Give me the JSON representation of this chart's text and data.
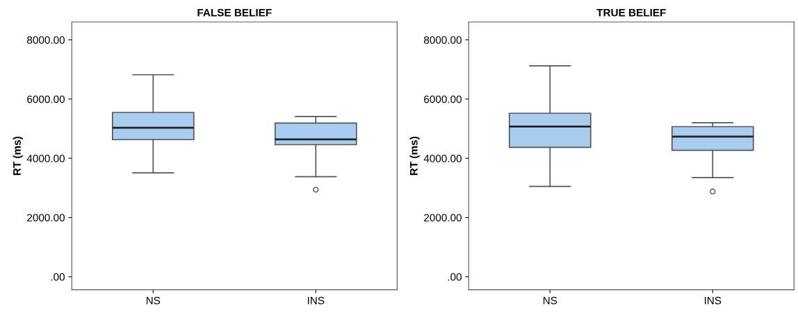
{
  "chart_data": [
    {
      "type": "box",
      "title": "FALSE BELIEF",
      "ylabel": "RT (ms)",
      "categories": [
        "NS",
        "INS"
      ],
      "color": "#a9cdee",
      "boxes": [
        {
          "low": 3510,
          "q1": 4630,
          "median": 5030,
          "q3": 5550,
          "high": 6820
        },
        {
          "low": 3380,
          "q1": 4460,
          "median": 4640,
          "q3": 5190,
          "high": 5410,
          "outliers": [
            2940
          ]
        }
      ],
      "ylim": [
        -440,
        8600
      ],
      "yticks": [
        {
          "value": 0,
          "label": ".00"
        },
        {
          "value": 2000,
          "label": "2000.00"
        },
        {
          "value": 4000,
          "label": "4000.00"
        },
        {
          "value": 6000,
          "label": "6000.00"
        },
        {
          "value": 8000,
          "label": "8000.00"
        }
      ],
      "grid": false
    },
    {
      "type": "box",
      "title": "TRUE BELIEF",
      "ylabel": "RT (ms)",
      "categories": [
        "NS",
        "INS"
      ],
      "color": "#a9cdee",
      "boxes": [
        {
          "low": 3050,
          "q1": 4370,
          "median": 5070,
          "q3": 5520,
          "high": 7120
        },
        {
          "low": 3350,
          "q1": 4270,
          "median": 4730,
          "q3": 5070,
          "high": 5200,
          "outliers": [
            2880
          ]
        }
      ],
      "ylim": [
        -440,
        8600
      ],
      "yticks": [
        {
          "value": 0,
          "label": ".00"
        },
        {
          "value": 2000,
          "label": "2000.00"
        },
        {
          "value": 4000,
          "label": "4000.00"
        },
        {
          "value": 6000,
          "label": "6000.00"
        },
        {
          "value": 8000,
          "label": "8000.00"
        }
      ],
      "grid": false
    }
  ]
}
